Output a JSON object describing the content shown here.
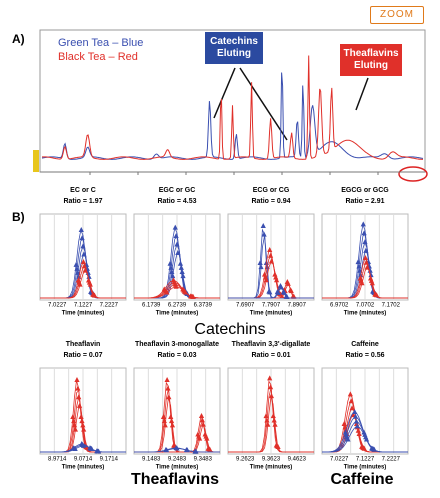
{
  "zoom": "ZOOM",
  "panel_a": {
    "label": "A)",
    "legend": [
      "Green Tea – Blue",
      "Black Tea – Red"
    ],
    "callouts": [
      "Catechins Eluting",
      "Theaflavins Eluting"
    ]
  },
  "panel_b": {
    "label": "B)",
    "groups": [
      "Catechins",
      "Theaflavins",
      "Caffeine"
    ],
    "panels": [
      {
        "title": "EC or C",
        "ratio": "Ratio = 1.97",
        "xlabel": "Time (minutes)",
        "xticks": [
          "7.0227",
          "7.1227",
          "7.2227"
        ]
      },
      {
        "title": "EGC or GC",
        "ratio": "Ratio = 4.53",
        "xlabel": "Time (minutes)",
        "xticks": [
          "6.1739",
          "6.2739",
          "6.3739"
        ]
      },
      {
        "title": "ECG or CG",
        "ratio": "Ratio = 0.94",
        "xlabel": "Time (minutes)",
        "xticks": [
          "7.6907",
          "7.7907",
          "7.8907"
        ]
      },
      {
        "title": "EGCG or GCG",
        "ratio": "Ratio = 2.91",
        "xlabel": "Time (minutes)",
        "xticks": [
          "6.9702",
          "7.0702",
          "7.1702"
        ]
      },
      {
        "title": "Theaflavin",
        "ratio": "Ratio = 0.07",
        "xlabel": "Time (minutes)",
        "xticks": [
          "8.9714",
          "9.0714",
          "9.1714"
        ]
      },
      {
        "title": "Theaflavin 3-monogallate",
        "ratio": "Ratio = 0.03",
        "xlabel": "Time (minutes)",
        "xticks": [
          "9.1483",
          "9.2483",
          "9.3483"
        ]
      },
      {
        "title": "Theaflavin 3,3'-digallate",
        "ratio": "Ratio = 0.01",
        "xlabel": "Time (minutes)",
        "xticks": [
          "9.2623",
          "9.3623",
          "9.4623"
        ]
      },
      {
        "title": "Caffeine",
        "ratio": "Ratio = 0.56",
        "xlabel": "Time (minutes)",
        "xticks": [
          "7.0227",
          "7.1227",
          "7.2227"
        ]
      }
    ]
  }
}
